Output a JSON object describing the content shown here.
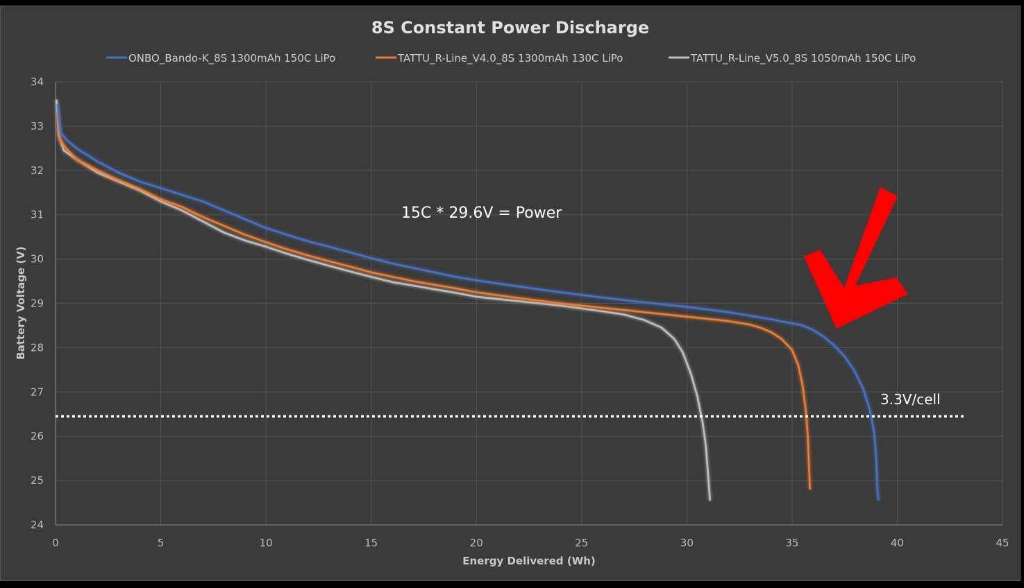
{
  "chart_data": {
    "type": "line",
    "title": "8S Constant Power Discharge",
    "xlabel": "Energy Delivered (Wh)",
    "ylabel": "Battery Voltage (V)",
    "xlim": [
      0,
      45
    ],
    "ylim": [
      24,
      34
    ],
    "x_ticks": [
      "0",
      "5",
      "10",
      "15",
      "20",
      "25",
      "30",
      "35",
      "40",
      "45"
    ],
    "y_ticks": [
      "24",
      "25",
      "26",
      "27",
      "28",
      "29",
      "30",
      "31",
      "32",
      "33",
      "34"
    ],
    "grid": true,
    "legend_position": "top",
    "series": [
      {
        "name": "ONBO_Bando-K_8S 1300mAh 150C LiPo",
        "color": "#4472c4",
        "points": [
          [
            0.1,
            33.5
          ],
          [
            0.25,
            32.85
          ],
          [
            0.5,
            32.7
          ],
          [
            1,
            32.5
          ],
          [
            2,
            32.2
          ],
          [
            3,
            31.95
          ],
          [
            4,
            31.75
          ],
          [
            5,
            31.6
          ],
          [
            6,
            31.45
          ],
          [
            7,
            31.3
          ],
          [
            8,
            31.1
          ],
          [
            9,
            30.9
          ],
          [
            10,
            30.7
          ],
          [
            11,
            30.55
          ],
          [
            12,
            30.4
          ],
          [
            13,
            30.28
          ],
          [
            14,
            30.15
          ],
          [
            15,
            30.02
          ],
          [
            16,
            29.9
          ],
          [
            17,
            29.8
          ],
          [
            18,
            29.7
          ],
          [
            19,
            29.6
          ],
          [
            20,
            29.52
          ],
          [
            22,
            29.38
          ],
          [
            24,
            29.25
          ],
          [
            26,
            29.13
          ],
          [
            28,
            29.02
          ],
          [
            30,
            28.92
          ],
          [
            32,
            28.8
          ],
          [
            33,
            28.72
          ],
          [
            34,
            28.64
          ],
          [
            35,
            28.55
          ],
          [
            35.5,
            28.5
          ],
          [
            36,
            28.4
          ],
          [
            36.5,
            28.25
          ],
          [
            37,
            28.05
          ],
          [
            37.5,
            27.8
          ],
          [
            38,
            27.45
          ],
          [
            38.4,
            27.05
          ],
          [
            38.7,
            26.6
          ],
          [
            38.9,
            26.1
          ],
          [
            39.0,
            25.5
          ],
          [
            39.05,
            24.9
          ],
          [
            39.1,
            24.55
          ]
        ]
      },
      {
        "name": "TATTU_R-Line_V4.0_8S 1300mAh 130C LiPo",
        "color": "#ed7d31",
        "points": [
          [
            0.1,
            33.3
          ],
          [
            0.2,
            32.7
          ],
          [
            0.5,
            32.5
          ],
          [
            1,
            32.25
          ],
          [
            2,
            32.0
          ],
          [
            3,
            31.78
          ],
          [
            4,
            31.58
          ],
          [
            5,
            31.35
          ],
          [
            6,
            31.18
          ],
          [
            7,
            30.95
          ],
          [
            8,
            30.75
          ],
          [
            9,
            30.55
          ],
          [
            10,
            30.38
          ],
          [
            11,
            30.22
          ],
          [
            12,
            30.08
          ],
          [
            13,
            29.95
          ],
          [
            14,
            29.83
          ],
          [
            15,
            29.7
          ],
          [
            16,
            29.6
          ],
          [
            17,
            29.5
          ],
          [
            18,
            29.42
          ],
          [
            19,
            29.34
          ],
          [
            20,
            29.25
          ],
          [
            22,
            29.12
          ],
          [
            24,
            29.0
          ],
          [
            26,
            28.9
          ],
          [
            28,
            28.8
          ],
          [
            30,
            28.7
          ],
          [
            32,
            28.6
          ],
          [
            33,
            28.52
          ],
          [
            33.5,
            28.45
          ],
          [
            34,
            28.35
          ],
          [
            34.5,
            28.2
          ],
          [
            35,
            27.95
          ],
          [
            35.3,
            27.6
          ],
          [
            35.5,
            27.15
          ],
          [
            35.65,
            26.6
          ],
          [
            35.75,
            26.0
          ],
          [
            35.8,
            25.4
          ],
          [
            35.85,
            24.8
          ]
        ]
      },
      {
        "name": "TATTU_R-Line_V5.0_8S 1050mAh 150C LiPo",
        "color": "#bfbfbf",
        "points": [
          [
            0.05,
            33.6
          ],
          [
            0.15,
            32.8
          ],
          [
            0.4,
            32.45
          ],
          [
            1,
            32.25
          ],
          [
            2,
            31.95
          ],
          [
            3,
            31.75
          ],
          [
            4,
            31.55
          ],
          [
            5,
            31.3
          ],
          [
            6,
            31.1
          ],
          [
            7,
            30.85
          ],
          [
            8,
            30.6
          ],
          [
            9,
            30.42
          ],
          [
            10,
            30.28
          ],
          [
            11,
            30.12
          ],
          [
            12,
            29.98
          ],
          [
            13,
            29.85
          ],
          [
            14,
            29.72
          ],
          [
            15,
            29.6
          ],
          [
            16,
            29.48
          ],
          [
            17,
            29.4
          ],
          [
            18,
            29.32
          ],
          [
            19,
            29.24
          ],
          [
            20,
            29.15
          ],
          [
            22,
            29.05
          ],
          [
            24,
            28.95
          ],
          [
            26,
            28.82
          ],
          [
            27,
            28.75
          ],
          [
            28,
            28.62
          ],
          [
            28.8,
            28.45
          ],
          [
            29.4,
            28.2
          ],
          [
            29.8,
            27.9
          ],
          [
            30.2,
            27.4
          ],
          [
            30.5,
            26.9
          ],
          [
            30.75,
            26.3
          ],
          [
            30.9,
            25.8
          ],
          [
            31.0,
            25.2
          ],
          [
            31.1,
            24.55
          ]
        ]
      }
    ],
    "reference_line": {
      "y": 26.45,
      "x_range": [
        0,
        43.2
      ],
      "style": "dotted",
      "color": "#ffffff",
      "label": "3.3V/cell"
    },
    "annotations": [
      {
        "text": "15C * 29.6V = Power",
        "x": 20.2,
        "y": 31.0
      }
    ],
    "arrow": {
      "color": "#ff0000",
      "points_to": [
        36.5,
        28.3
      ]
    }
  }
}
